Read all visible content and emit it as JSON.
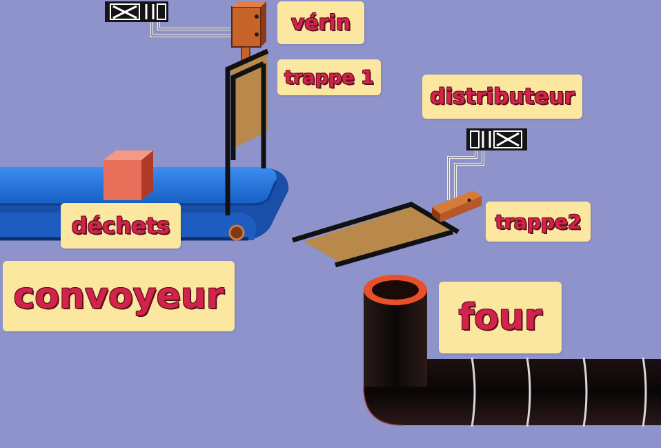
{
  "labels": {
    "verin": "vérin",
    "trappe1": "trappe 1",
    "distributeur": "distributeur",
    "dechets": "déchets",
    "trappe2": "trappe2",
    "convoyeur": "convoyeur",
    "four": "four"
  },
  "colors": {
    "background": "#8f93cc",
    "conveyor": "#1a6fd6",
    "trap": "#b8894a",
    "cylinder": "#c8642a",
    "waste_cube": "#e8705a",
    "oven_pipe": "#121010",
    "oven_rim": "#e85a30",
    "label_bg": "#fbe7a0",
    "label_text": "#d4234a"
  }
}
